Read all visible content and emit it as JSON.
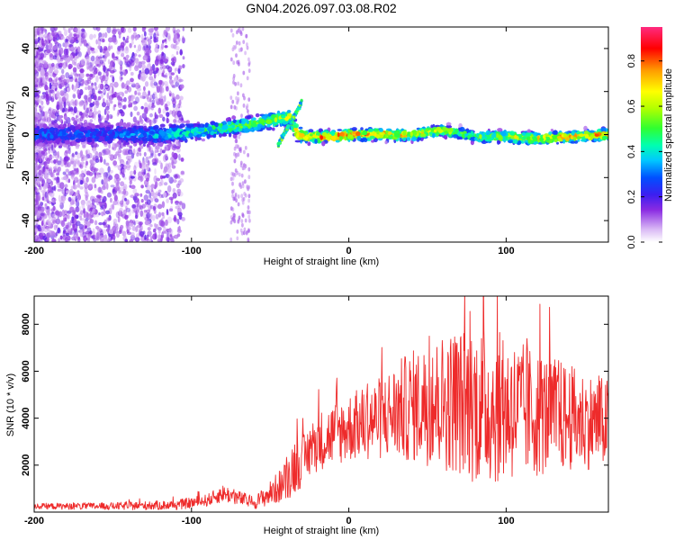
{
  "title": "GN04.2026.097.03.08.R02",
  "chart_data": [
    {
      "type": "heatmap",
      "name": "spectrogram",
      "xlabel": "Height of straight line (km)",
      "ylabel": "Frequency (Hz)",
      "xlim": [
        -200,
        165
      ],
      "ylim": [
        -50,
        50
      ],
      "xticks": [
        -200,
        -100,
        0,
        100
      ],
      "yticks": [
        -40,
        -20,
        0,
        20,
        40
      ],
      "xtick_labels": [
        "-200",
        "-100",
        "0",
        "100"
      ],
      "ytick_labels": [
        "-40",
        "-20",
        "0",
        "20",
        "40"
      ],
      "colorbar": {
        "label": "Normalized spectral amplitude",
        "range": [
          0,
          0.95
        ],
        "ticks": [
          0,
          0.2,
          0.4,
          0.6,
          0.8
        ],
        "tick_labels": [
          "0.0",
          "0.2",
          "0.4",
          "0.6",
          "0.8"
        ],
        "colormap": "rainbow"
      },
      "ridge": {
        "description_points_x": [
          -200,
          -150,
          -120,
          -100,
          -80,
          -60,
          -45,
          -38,
          -32,
          -25,
          -10,
          0,
          20,
          40,
          60,
          80,
          100,
          120,
          140,
          165
        ],
        "center_hz": [
          0,
          0,
          0,
          1,
          3,
          5,
          7,
          8,
          0,
          -1,
          -1,
          0,
          0,
          0,
          2,
          -1,
          -1,
          -2,
          -1,
          0
        ],
        "peak_amplitude": [
          0.35,
          0.35,
          0.45,
          0.5,
          0.6,
          0.65,
          0.7,
          0.75,
          0.85,
          0.9,
          0.95,
          0.95,
          0.9,
          0.85,
          0.7,
          0.6,
          0.75,
          0.8,
          0.9,
          0.85
        ]
      }
    },
    {
      "type": "line",
      "name": "snr",
      "xlabel": "Height of straight line (km)",
      "ylabel": "SNR (10 * v/v)",
      "xlim": [
        -200,
        165
      ],
      "ylim": [
        0,
        9200
      ],
      "xticks": [
        -200,
        -100,
        0,
        100
      ],
      "yticks": [
        2000,
        4000,
        6000,
        8000
      ],
      "xtick_labels": [
        "-200",
        "-100",
        "0",
        "100"
      ],
      "ytick_labels": [
        "2000",
        "4000",
        "6000",
        "8000"
      ],
      "series": [
        {
          "name": "SNR",
          "color": "#ee2b2b",
          "envelope_x": [
            -200,
            -150,
            -110,
            -90,
            -80,
            -70,
            -60,
            -50,
            -40,
            -35,
            -30,
            -25,
            -20,
            -10,
            0,
            10,
            20,
            30,
            40,
            50,
            60,
            70,
            80,
            90,
            100,
            110,
            120,
            130,
            140,
            150,
            160,
            165
          ],
          "envelope_mean": [
            250,
            250,
            300,
            500,
            800,
            600,
            400,
            800,
            1300,
            2000,
            2100,
            2600,
            3000,
            3300,
            3600,
            3800,
            4000,
            4300,
            4500,
            4600,
            4700,
            4700,
            4600,
            4500,
            4400,
            4300,
            4200,
            4100,
            4000,
            3900,
            3800,
            3800
          ],
          "envelope_amplitude": [
            120,
            150,
            200,
            250,
            350,
            300,
            250,
            500,
            800,
            1200,
            1000,
            1100,
            1200,
            1300,
            1400,
            1500,
            1700,
            2000,
            2300,
            2500,
            2800,
            3000,
            3200,
            3200,
            3000,
            2800,
            2600,
            2400,
            2200,
            2000,
            1900,
            1800
          ],
          "n_samples": 1200
        }
      ]
    }
  ]
}
